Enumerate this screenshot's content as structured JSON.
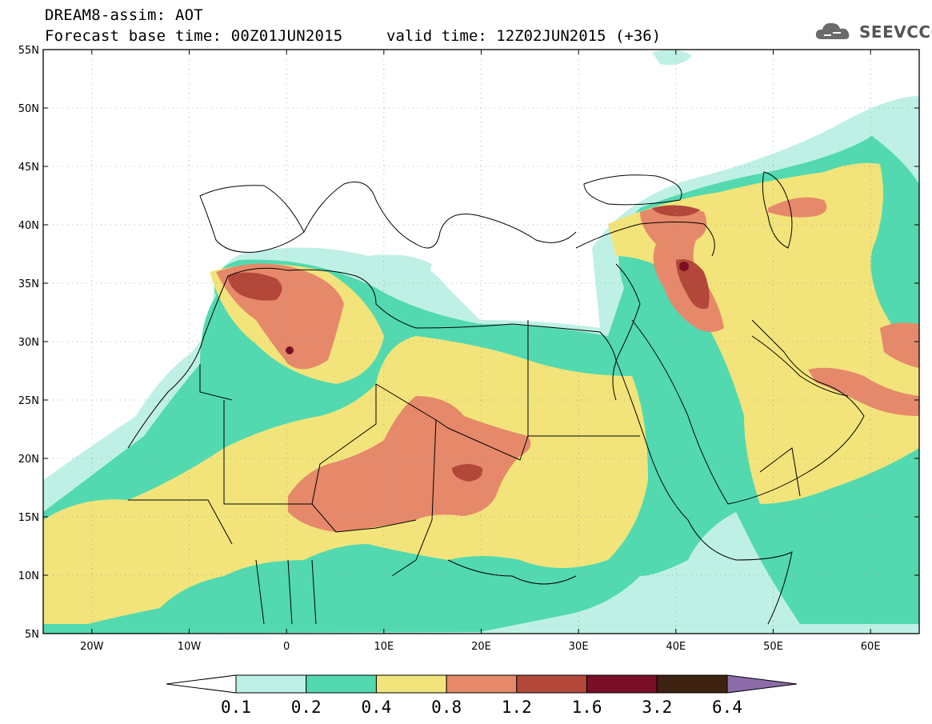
{
  "header": {
    "title": "DREAM8-assim: AOT",
    "base_time": "Forecast base time: 00Z01JUN2015",
    "valid_time": "valid time: 12Z02JUN2015 (+36)"
  },
  "logo": {
    "text": "SEEVCCC",
    "icon": "cloud-icon"
  },
  "map": {
    "lon_range": [
      -25,
      65
    ],
    "lat_range": [
      5,
      55
    ],
    "lat_ticks": [
      "5N",
      "10N",
      "15N",
      "20N",
      "25N",
      "30N",
      "35N",
      "40N",
      "45N",
      "50N",
      "55N"
    ],
    "lon_ticks": [
      "20W",
      "10W",
      "0",
      "10E",
      "20E",
      "30E",
      "40E",
      "50E",
      "60E"
    ],
    "grid": "dotted"
  },
  "colorbar": {
    "levels": [
      "0.1",
      "0.2",
      "0.4",
      "0.8",
      "1.2",
      "1.6",
      "3.2",
      "6.4"
    ],
    "colors": [
      "#ffffff",
      "#bff0e6",
      "#52d9b0",
      "#f2e47a",
      "#e5896a",
      "#b2473a",
      "#7a0f27",
      "#3d2212",
      "#8c6ba8"
    ]
  }
}
